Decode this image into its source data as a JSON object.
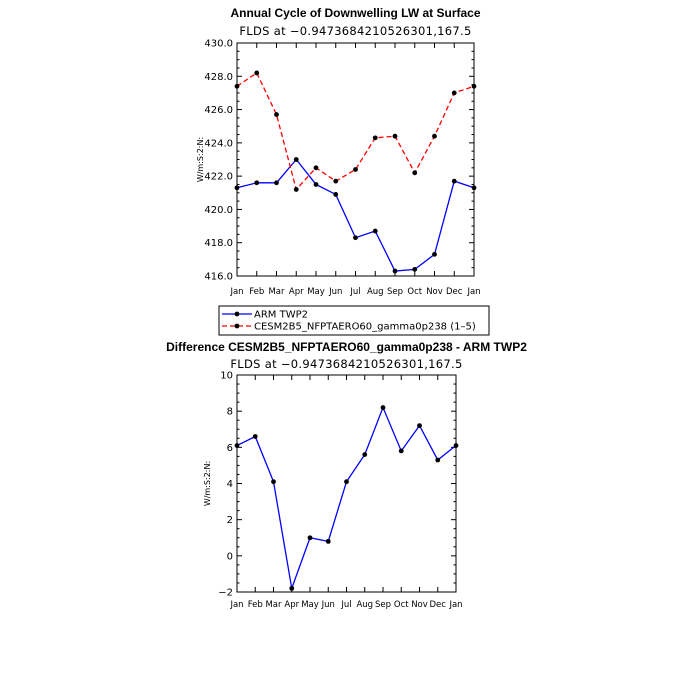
{
  "chart_data": [
    {
      "type": "line",
      "title": "Annual Cycle of Downwelling LW at Surface",
      "subtitle": "FLDS at −0.9473684210526301,167.5",
      "ylabel": "W/m:S:2:N:",
      "xlabel": "",
      "categories": [
        "Jan",
        "Feb",
        "Mar",
        "Apr",
        "May",
        "Jun",
        "Jul",
        "Aug",
        "Sep",
        "Oct",
        "Nov",
        "Dec",
        "Jan"
      ],
      "ylim": [
        416.0,
        430.0
      ],
      "yticks": [
        "416.0",
        "418.0",
        "420.0",
        "422.0",
        "424.0",
        "426.0",
        "428.0",
        "430.0"
      ],
      "series": [
        {
          "name": "ARM TWP2",
          "color": "#0000ff",
          "dash": "solid",
          "values": [
            421.3,
            421.6,
            421.6,
            423.0,
            421.5,
            420.9,
            418.3,
            418.7,
            416.3,
            416.4,
            417.3,
            421.7,
            421.3
          ]
        },
        {
          "name": "CESM2B5_NFPTAERO60_gamma0p238 (1–5)",
          "color": "#ff0000",
          "dash": "dashed",
          "values": [
            427.4,
            428.2,
            425.7,
            421.2,
            422.5,
            421.7,
            422.4,
            424.3,
            424.4,
            422.2,
            424.4,
            427.0,
            427.4
          ]
        }
      ]
    },
    {
      "type": "line",
      "title": "Difference CESM2B5_NFPTAERO60_gamma0p238 - ARM TWP2",
      "subtitle": "FLDS at −0.9473684210526301,167.5",
      "ylabel": "W/m:S:2:N:",
      "xlabel": "",
      "categories": [
        "Jan",
        "Feb",
        "Mar",
        "Apr",
        "May",
        "Jun",
        "Jul",
        "Aug",
        "Sep",
        "Oct",
        "Nov",
        "Dec",
        "Jan"
      ],
      "ylim": [
        -2,
        10
      ],
      "yticks": [
        "−2",
        "0",
        "2",
        "4",
        "6",
        "8",
        "10"
      ],
      "series": [
        {
          "name": "Difference",
          "color": "#0000ff",
          "dash": "solid",
          "values": [
            6.1,
            6.6,
            4.1,
            -1.8,
            1.0,
            0.8,
            4.1,
            5.6,
            8.2,
            5.8,
            7.2,
            5.3,
            6.1
          ]
        }
      ]
    }
  ]
}
